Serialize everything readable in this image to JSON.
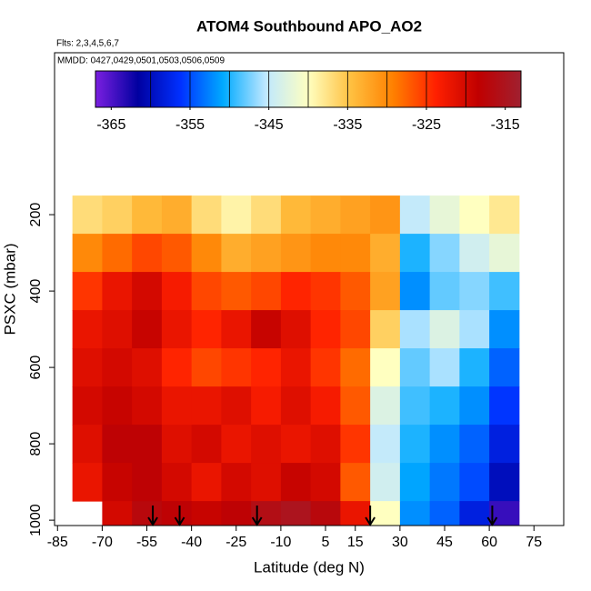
{
  "chart_data": {
    "type": "heatmap",
    "title": "ATOM4 Southbound APO_AO2",
    "subtitle": "Flts: 2,3,4,5,6,7",
    "annotation": "MMDD: 0427,0429,0501,0503,0506,0509",
    "xlabel": "Latitude (deg N)",
    "ylabel": "PSXC (mbar)",
    "xlim": [
      -86,
      85
    ],
    "xticks": [
      -85,
      -70,
      -55,
      -40,
      -25,
      -10,
      5,
      15,
      30,
      45,
      60,
      75
    ],
    "ylim": [
      1014,
      -224
    ],
    "yticks": [
      200,
      400,
      600,
      800,
      1000
    ],
    "x": [
      -75,
      -65,
      -55,
      -45,
      -35,
      -25,
      -15,
      -5,
      5,
      15,
      25,
      35,
      45,
      55,
      65
    ],
    "y": [
      200,
      300,
      400,
      500,
      600,
      700,
      800,
      900,
      1000
    ],
    "z": [
      [
        -337,
        -336,
        -334,
        -333,
        -337,
        -339,
        -337,
        -334,
        -333,
        -332,
        -331,
        -345,
        -342,
        -340,
        -338
      ],
      [
        -330,
        -328,
        -326,
        -327,
        -330,
        -333,
        -332,
        -331,
        -330,
        -330,
        -333,
        -350,
        -347,
        -344,
        -342
      ],
      [
        -325,
        -322,
        -320,
        -323,
        -326,
        -327,
        -326,
        -324,
        -325,
        -327,
        -332,
        -352,
        -348,
        -347,
        -349
      ],
      [
        -322,
        -321,
        -319,
        -322,
        -324,
        -322,
        -319,
        -321,
        -324,
        -326,
        -336,
        -346,
        -343,
        -346,
        -352
      ],
      [
        -321,
        -320,
        -321,
        -324,
        -326,
        -325,
        -324,
        -322,
        -325,
        -328,
        -340,
        -348,
        -346,
        -350,
        -354
      ],
      [
        -320,
        -319,
        -320,
        -322,
        -322,
        -321,
        -323,
        -321,
        -323,
        -327,
        -343,
        -349,
        -350,
        -352,
        -356
      ],
      [
        -321,
        -318,
        -318,
        -321,
        -320,
        -322,
        -321,
        -322,
        -321,
        -325,
        -345,
        -350,
        -352,
        -354,
        -358
      ],
      [
        -322,
        -319,
        -318,
        -320,
        -322,
        -320,
        -321,
        -319,
        -320,
        -327,
        -344,
        -351,
        -353,
        -355,
        -360
      ],
      [
        null,
        -320,
        -317,
        -318,
        -319,
        -318,
        -316,
        -315,
        -317,
        -322,
        -340,
        -352,
        -354,
        -358,
        -364
      ]
    ],
    "arrows": [
      -53,
      -44,
      -18,
      20,
      61
    ],
    "colorbar": {
      "lim": [
        -367,
        -313
      ],
      "ticks": [
        -365,
        -355,
        -345,
        -335,
        -325,
        -315
      ],
      "breaks": [
        -360,
        -355,
        -350,
        -345,
        -340,
        -335,
        -330,
        -325,
        -320
      ],
      "colors": [
        "#7b1fe0",
        "#0000a0",
        "#0030ff",
        "#00aaff",
        "#bfe8ff",
        "#ffffc0",
        "#ffc040",
        "#ff8000",
        "#ff2000",
        "#c00000",
        "#a02030"
      ]
    }
  }
}
